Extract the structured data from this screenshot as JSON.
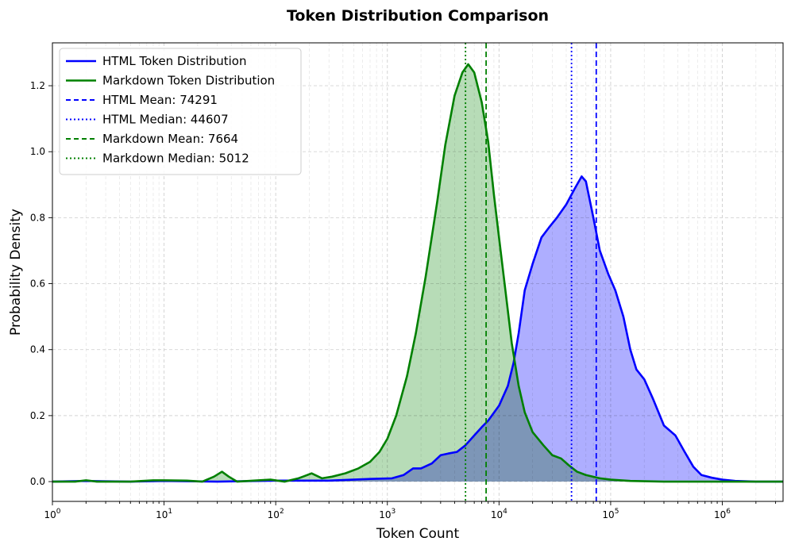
{
  "chart_data": {
    "type": "area",
    "title": "Token Distribution Comparison",
    "xlabel": "Token Count",
    "ylabel": "Probability Density",
    "x_scale": "log",
    "xlim": [
      1,
      3500000
    ],
    "ylim": [
      -0.06,
      1.33
    ],
    "x_ticks": [
      {
        "value": 1,
        "base": "10",
        "exp": "0"
      },
      {
        "value": 10,
        "base": "10",
        "exp": "1"
      },
      {
        "value": 100,
        "base": "10",
        "exp": "2"
      },
      {
        "value": 1000,
        "base": "10",
        "exp": "3"
      },
      {
        "value": 10000,
        "base": "10",
        "exp": "4"
      },
      {
        "value": 100000,
        "base": "10",
        "exp": "5"
      },
      {
        "value": 1000000,
        "base": "10",
        "exp": "6"
      }
    ],
    "y_ticks": [
      "0.0",
      "0.2",
      "0.4",
      "0.6",
      "0.8",
      "1.0",
      "1.2"
    ],
    "grid": true,
    "legend_position": "top-left",
    "series": [
      {
        "name": "HTML Token Distribution",
        "color": "#0000ff",
        "fill": "#aaaaff",
        "points": [
          [
            1,
            0.0
          ],
          [
            2,
            0.002
          ],
          [
            5,
            0.0
          ],
          [
            10,
            0.002
          ],
          [
            30,
            0.0
          ],
          [
            100,
            0.003
          ],
          [
            300,
            0.003
          ],
          [
            700,
            0.008
          ],
          [
            1100,
            0.01
          ],
          [
            1400,
            0.02
          ],
          [
            1700,
            0.04
          ],
          [
            2000,
            0.04
          ],
          [
            2500,
            0.055
          ],
          [
            3000,
            0.08
          ],
          [
            3500,
            0.085
          ],
          [
            4200,
            0.09
          ],
          [
            5000,
            0.11
          ],
          [
            6000,
            0.14
          ],
          [
            7000,
            0.165
          ],
          [
            8000,
            0.185
          ],
          [
            10000,
            0.23
          ],
          [
            12000,
            0.29
          ],
          [
            13500,
            0.36
          ],
          [
            15000,
            0.45
          ],
          [
            17000,
            0.58
          ],
          [
            20000,
            0.66
          ],
          [
            24000,
            0.74
          ],
          [
            28000,
            0.77
          ],
          [
            33000,
            0.8
          ],
          [
            40000,
            0.84
          ],
          [
            48000,
            0.89
          ],
          [
            55000,
            0.925
          ],
          [
            60000,
            0.91
          ],
          [
            70000,
            0.8
          ],
          [
            80000,
            0.7
          ],
          [
            95000,
            0.63
          ],
          [
            110000,
            0.58
          ],
          [
            130000,
            0.5
          ],
          [
            150000,
            0.4
          ],
          [
            170000,
            0.34
          ],
          [
            200000,
            0.31
          ],
          [
            240000,
            0.25
          ],
          [
            300000,
            0.17
          ],
          [
            380000,
            0.14
          ],
          [
            460000,
            0.09
          ],
          [
            550000,
            0.045
          ],
          [
            650000,
            0.02
          ],
          [
            800000,
            0.012
          ],
          [
            1000000,
            0.006
          ],
          [
            1300000,
            0.002
          ],
          [
            2000000,
            0.0
          ],
          [
            3500000,
            0.0
          ]
        ]
      },
      {
        "name": "Markdown Token Distribution",
        "color": "#008000",
        "fill": "#b3dab3",
        "points": [
          [
            1,
            0.0
          ],
          [
            1.6,
            0.0
          ],
          [
            2,
            0.004
          ],
          [
            2.5,
            0.0
          ],
          [
            5,
            0.0
          ],
          [
            8,
            0.004
          ],
          [
            10,
            0.004
          ],
          [
            16,
            0.003
          ],
          [
            22,
            0.0
          ],
          [
            28,
            0.015
          ],
          [
            33,
            0.03
          ],
          [
            38,
            0.015
          ],
          [
            45,
            0.0
          ],
          [
            70,
            0.004
          ],
          [
            90,
            0.006
          ],
          [
            120,
            0.0
          ],
          [
            160,
            0.01
          ],
          [
            210,
            0.025
          ],
          [
            260,
            0.01
          ],
          [
            320,
            0.015
          ],
          [
            420,
            0.025
          ],
          [
            550,
            0.04
          ],
          [
            700,
            0.06
          ],
          [
            850,
            0.09
          ],
          [
            1000,
            0.13
          ],
          [
            1200,
            0.2
          ],
          [
            1500,
            0.32
          ],
          [
            1800,
            0.45
          ],
          [
            2200,
            0.62
          ],
          [
            2800,
            0.85
          ],
          [
            3300,
            1.02
          ],
          [
            4000,
            1.17
          ],
          [
            4700,
            1.24
          ],
          [
            5300,
            1.265
          ],
          [
            6000,
            1.24
          ],
          [
            7000,
            1.15
          ],
          [
            8000,
            1.03
          ],
          [
            9000,
            0.87
          ],
          [
            10000,
            0.74
          ],
          [
            11500,
            0.57
          ],
          [
            13000,
            0.42
          ],
          [
            15000,
            0.29
          ],
          [
            17000,
            0.21
          ],
          [
            20000,
            0.15
          ],
          [
            25000,
            0.11
          ],
          [
            30000,
            0.08
          ],
          [
            36000,
            0.07
          ],
          [
            42000,
            0.05
          ],
          [
            50000,
            0.03
          ],
          [
            60000,
            0.02
          ],
          [
            80000,
            0.01
          ],
          [
            100000,
            0.006
          ],
          [
            150000,
            0.002
          ],
          [
            300000,
            0.0
          ],
          [
            3500000,
            0.0
          ]
        ]
      }
    ],
    "reference_lines": [
      {
        "name": "HTML Mean: 74291",
        "value": 74291,
        "color": "#0000ff",
        "style": "dashed"
      },
      {
        "name": "HTML Median: 44607",
        "value": 44607,
        "color": "#0000ff",
        "style": "dotted"
      },
      {
        "name": "Markdown Mean: 7664",
        "value": 7664,
        "color": "#008000",
        "style": "dashed"
      },
      {
        "name": "Markdown Median: 5012",
        "value": 5012,
        "color": "#008000",
        "style": "dotted"
      }
    ]
  }
}
